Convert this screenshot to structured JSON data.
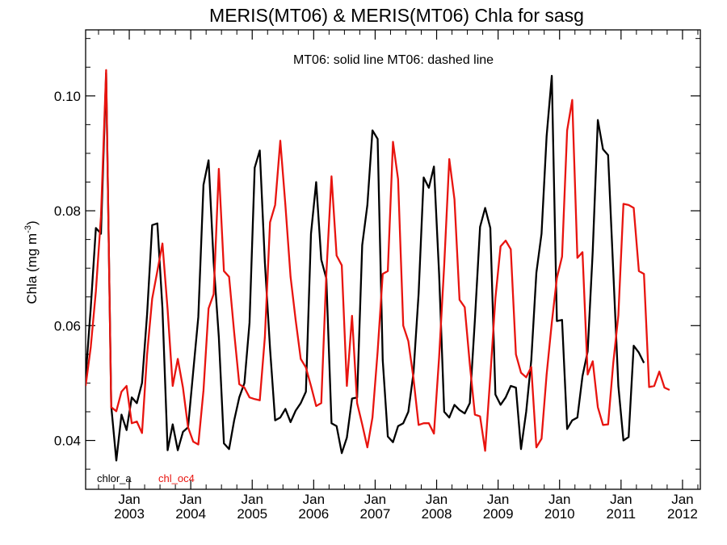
{
  "chart_data": {
    "type": "line",
    "title": "MERIS(MT06) & MERIS(MT06)  Chla for sasg",
    "annotation": "MT06: solid line   MT06: dashed line",
    "ylabel_main": "Chla (mg m",
    "ylabel_exp": "-3",
    "ylabel_close": ")",
    "xlim": [
      2002.29,
      2012.29
    ],
    "ylim": [
      0.0315,
      0.1115
    ],
    "yticks": [
      {
        "value": 0.04,
        "label": "0.04"
      },
      {
        "value": 0.06,
        "label": "0.06"
      },
      {
        "value": 0.08,
        "label": "0.08"
      },
      {
        "value": 0.1,
        "label": "0.10"
      }
    ],
    "xticks": [
      {
        "value": 2003.0,
        "month": "Jan",
        "year": "2003"
      },
      {
        "value": 2004.0,
        "month": "Jan",
        "year": "2004"
      },
      {
        "value": 2005.0,
        "month": "Jan",
        "year": "2005"
      },
      {
        "value": 2006.0,
        "month": "Jan",
        "year": "2006"
      },
      {
        "value": 2007.0,
        "month": "Jan",
        "year": "2007"
      },
      {
        "value": 2008.0,
        "month": "Jan",
        "year": "2008"
      },
      {
        "value": 2009.0,
        "month": "Jan",
        "year": "2009"
      },
      {
        "value": 2010.0,
        "month": "Jan",
        "year": "2010"
      },
      {
        "value": 2011.0,
        "month": "Jan",
        "year": "2011"
      },
      {
        "value": 2012.0,
        "month": "Jan",
        "year": "2012"
      }
    ],
    "x_start": 2002.29,
    "x_step": 0.08333,
    "grid": false,
    "legend_position": "bottom-left",
    "series": [
      {
        "name": "chlor_a",
        "color": "#000000",
        "values": [
          0.051,
          0.063,
          0.077,
          0.076,
          0.104,
          0.046,
          0.0365,
          0.0445,
          0.0418,
          0.0475,
          0.0465,
          0.05,
          0.062,
          0.0775,
          0.0778,
          0.063,
          0.0383,
          0.0428,
          0.0383,
          0.0415,
          0.0423,
          0.052,
          0.0615,
          0.0845,
          0.0888,
          0.071,
          0.058,
          0.0395,
          0.0385,
          0.0435,
          0.0475,
          0.05,
          0.0605,
          0.0875,
          0.0905,
          0.071,
          0.056,
          0.0435,
          0.044,
          0.0455,
          0.0432,
          0.0452,
          0.0465,
          0.0485,
          0.076,
          0.085,
          0.0715,
          0.0682,
          0.043,
          0.0425,
          0.0378,
          0.0405,
          0.0473,
          0.0475,
          0.074,
          0.081,
          0.094,
          0.0925,
          0.054,
          0.0407,
          0.0397,
          0.0425,
          0.043,
          0.045,
          0.0518,
          0.0655,
          0.0858,
          0.084,
          0.0877,
          0.069,
          0.045,
          0.044,
          0.0462,
          0.0453,
          0.0447,
          0.0465,
          0.061,
          0.0772,
          0.0805,
          0.077,
          0.048,
          0.0462,
          0.0475,
          0.0495,
          0.0492,
          0.0385,
          0.045,
          0.054,
          0.0692,
          0.076,
          0.093,
          0.1035,
          0.0608,
          0.061,
          0.042,
          0.0435,
          0.044,
          0.0512,
          0.0555,
          0.073,
          0.0958,
          0.0907,
          0.0897,
          0.0695,
          0.0495,
          0.04,
          0.0406,
          0.0565,
          0.0553,
          0.0535
        ]
      },
      {
        "name": "chl_oc4",
        "color": "#e8140f",
        "values": [
          0.0495,
          0.0562,
          0.066,
          0.079,
          0.1045,
          0.0458,
          0.0451,
          0.0485,
          0.0495,
          0.043,
          0.0433,
          0.0413,
          0.055,
          0.0647,
          0.0695,
          0.0743,
          0.0628,
          0.0495,
          0.0542,
          0.0492,
          0.0423,
          0.0398,
          0.0393,
          0.0487,
          0.063,
          0.0655,
          0.0873,
          0.0695,
          0.0685,
          0.0588,
          0.0498,
          0.0492,
          0.0475,
          0.0472,
          0.047,
          0.058,
          0.078,
          0.081,
          0.0922,
          0.081,
          0.0685,
          0.061,
          0.0542,
          0.0527,
          0.0495,
          0.046,
          0.0465,
          0.069,
          0.086,
          0.0722,
          0.0705,
          0.0495,
          0.0617,
          0.0465,
          0.0428,
          0.0388,
          0.044,
          0.0555,
          0.069,
          0.0695,
          0.092,
          0.0855,
          0.06,
          0.0573,
          0.0508,
          0.0427,
          0.043,
          0.043,
          0.0412,
          0.0545,
          0.0705,
          0.089,
          0.082,
          0.0645,
          0.0632,
          0.0533,
          0.0445,
          0.0442,
          0.0382,
          0.0512,
          0.0648,
          0.0738,
          0.0748,
          0.0733,
          0.055,
          0.0518,
          0.051,
          0.0528,
          0.0388,
          0.0403,
          0.0515,
          0.0605,
          0.0683,
          0.072,
          0.094,
          0.0993,
          0.0718,
          0.0728,
          0.0515,
          0.0538,
          0.0458,
          0.0427,
          0.0428,
          0.0535,
          0.0618,
          0.0812,
          0.081,
          0.0805,
          0.0695,
          0.069,
          0.0493,
          0.0495,
          0.052,
          0.0492,
          0.0488
        ]
      }
    ]
  }
}
